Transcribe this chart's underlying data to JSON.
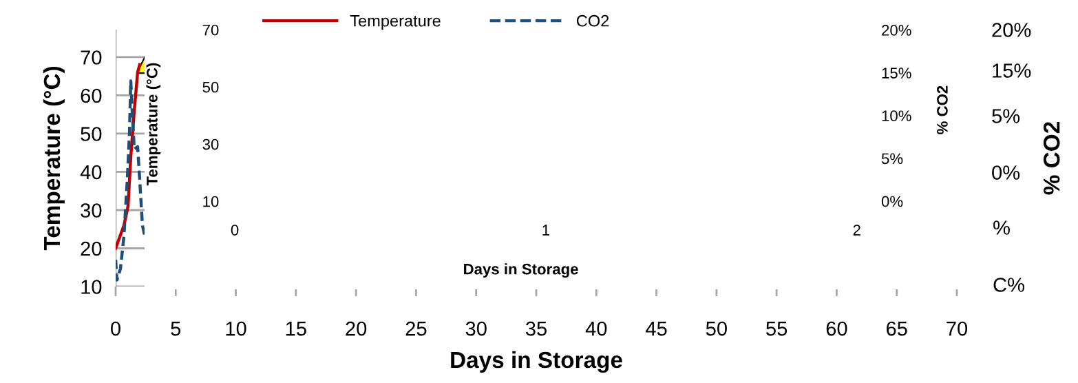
{
  "chart_data": [
    {
      "type": "line",
      "xlabel": "Days in Storage",
      "ylabel": "Temperature (°C)",
      "y2label": "% CO2",
      "legend": "top",
      "grid": true,
      "xlim": [
        0,
        70
      ],
      "xticks": [
        0,
        5,
        10,
        15,
        20,
        25,
        30,
        35,
        40,
        45,
        50,
        55,
        60,
        65,
        70
      ],
      "ylim": [
        10,
        77.2
      ],
      "yticks": [
        10,
        20,
        30,
        40,
        50,
        60,
        70
      ],
      "y2lim": [
        -11.6,
        20
      ],
      "y2ticks": [
        {
          "value": 15,
          "label": "15%"
        },
        {
          "value": 20,
          "label": "20%"
        }
      ],
      "y3lim": [
        -10.1,
        12.6
      ],
      "y3ticks": [
        {
          "value": 0,
          "label": "0%"
        },
        {
          "value": 5,
          "label": "5%"
        }
      ],
      "annotations": [
        "%",
        "C%"
      ],
      "series": [
        {
          "name": "Temperature",
          "color": "#c00000",
          "line_style": "solid",
          "x": [
            0,
            0.69,
            1.03,
            1.26,
            1.55,
            1.83,
            2.0
          ],
          "values": [
            20,
            26,
            31,
            44,
            56,
            66,
            68
          ]
        },
        {
          "name": "CO2",
          "color": "#1f4e79",
          "line_style": "dashed",
          "axis": "y2",
          "x": [
            0,
            0.11,
            0.4,
            0.69,
            0.97,
            1.15,
            1.26,
            1.37,
            1.55,
            1.83,
            2.0,
            2.23,
            2.4
          ],
          "values": [
            -8.3,
            -10.8,
            -9.4,
            -5.4,
            1.6,
            7.3,
            13.7,
            10.1,
            5.3,
            5.6,
            1.6,
            -4.1,
            -5.2
          ]
        },
        {
          "type": "scatter",
          "color": "#ffff00",
          "marker": "triangle",
          "x": [
            2.45
          ],
          "values": [
            68
          ]
        }
      ]
    },
    {
      "type": "line",
      "xlabel": "Days in Storage",
      "ylabel": "Temperature (°C)",
      "y2label": "% CO2",
      "xlim": [
        -0.29,
        2.41
      ],
      "xticks": [
        0,
        1,
        2
      ],
      "ylim": [
        -20.8,
        80.4
      ],
      "yticks": [
        10,
        30,
        50,
        70
      ],
      "y2lim": [
        -10.3,
        23.5
      ],
      "y2ticks": [
        {
          "value": 0,
          "label": "0%"
        },
        {
          "value": 5,
          "label": "5%"
        },
        {
          "value": 10,
          "label": "10%"
        },
        {
          "value": 15,
          "label": "15%"
        },
        {
          "value": 20,
          "label": "20%"
        }
      ]
    }
  ]
}
